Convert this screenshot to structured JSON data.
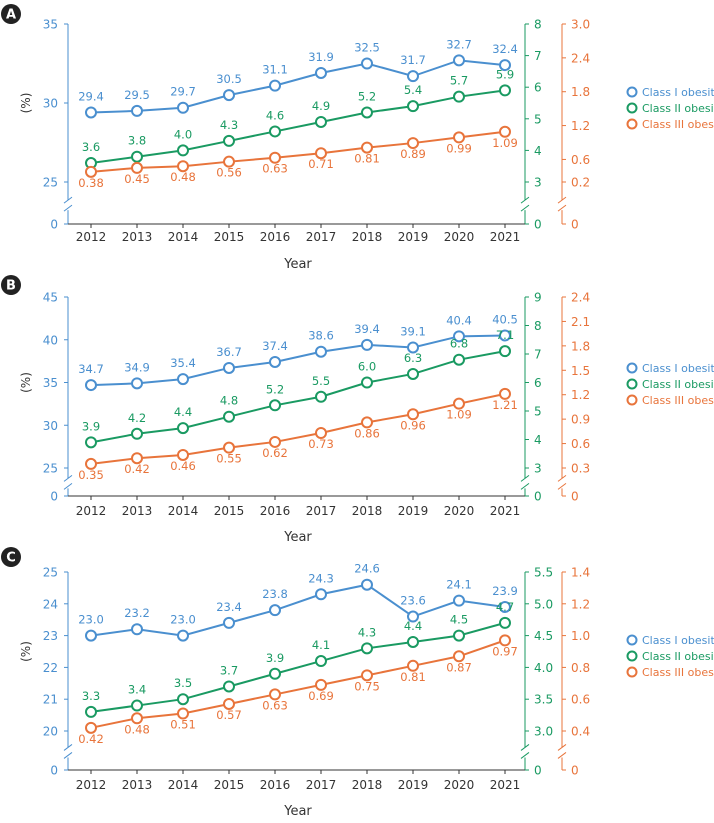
{
  "colors": {
    "class1": "#4a8fcf",
    "class2": "#1a9a62",
    "class3": "#e8743b",
    "axis": "#333333",
    "badge": "#222222"
  },
  "chart_data": [
    {
      "type": "line",
      "panel_label": "A",
      "title": "",
      "xlabel": "Year",
      "ylabel": "(%)",
      "categories": [
        "2012",
        "2013",
        "2014",
        "2015",
        "2016",
        "2017",
        "2018",
        "2019",
        "2020",
        "2021"
      ],
      "y_left": {
        "min": 25,
        "max": 35,
        "ticks": [
          "25",
          "30",
          "35"
        ],
        "zero": "0"
      },
      "y_mid": {
        "min": 3,
        "max": 8,
        "ticks": [
          "3",
          "4",
          "5",
          "6",
          "7",
          "8"
        ],
        "zero": "0"
      },
      "y_right": {
        "min": 0.2,
        "max": 3.0,
        "ticks": [
          "0.2",
          "0.6",
          "1.2",
          "1.8",
          "2.4",
          "3.0"
        ],
        "zero": "0"
      },
      "series": [
        {
          "name": "Class I obesity",
          "axis": "left",
          "values": [
            29.4,
            29.5,
            29.7,
            30.5,
            31.1,
            31.9,
            32.5,
            31.7,
            32.7,
            32.4
          ],
          "labels": [
            "29.4",
            "29.5",
            "29.7",
            "30.5",
            "31.1",
            "31.9",
            "32.5",
            "31.7",
            "32.7",
            "32.4"
          ]
        },
        {
          "name": "Class II obesity",
          "axis": "mid",
          "values": [
            3.6,
            3.8,
            4.0,
            4.3,
            4.6,
            4.9,
            5.2,
            5.4,
            5.7,
            5.9
          ],
          "labels": [
            "3.6",
            "3.8",
            "4.0",
            "4.3",
            "4.6",
            "4.9",
            "5.2",
            "5.4",
            "5.7",
            "5.9"
          ]
        },
        {
          "name": "Class III obesity",
          "axis": "right",
          "values": [
            0.38,
            0.45,
            0.48,
            0.56,
            0.63,
            0.71,
            0.81,
            0.89,
            0.99,
            1.09
          ],
          "labels": [
            "0.38",
            "0.45",
            "0.48",
            "0.56",
            "0.63",
            "0.71",
            "0.81",
            "0.89",
            "0.99",
            "1.09"
          ]
        }
      ]
    },
    {
      "type": "line",
      "panel_label": "B",
      "title": "",
      "xlabel": "Year",
      "ylabel": "(%)",
      "categories": [
        "2012",
        "2013",
        "2014",
        "2015",
        "2016",
        "2017",
        "2018",
        "2019",
        "2020",
        "2021"
      ],
      "y_left": {
        "min": 25,
        "max": 45,
        "ticks": [
          "25",
          "30",
          "35",
          "40",
          "45"
        ],
        "zero": "0"
      },
      "y_mid": {
        "min": 3,
        "max": 9,
        "ticks": [
          "3",
          "4",
          "5",
          "6",
          "7",
          "8",
          "9"
        ],
        "zero": "0"
      },
      "y_right": {
        "min": 0.3,
        "max": 2.4,
        "ticks": [
          "0.3",
          "0.6",
          "0.9",
          "1.2",
          "1.5",
          "1.8",
          "2.1",
          "2.4"
        ],
        "zero": "0"
      },
      "series": [
        {
          "name": "Class I obesity",
          "axis": "left",
          "values": [
            34.7,
            34.9,
            35.4,
            36.7,
            37.4,
            38.6,
            39.4,
            39.1,
            40.4,
            40.5
          ],
          "labels": [
            "34.7",
            "34.9",
            "35.4",
            "36.7",
            "37.4",
            "38.6",
            "39.4",
            "39.1",
            "40.4",
            "40.5"
          ]
        },
        {
          "name": "Class II obesity",
          "axis": "mid",
          "values": [
            3.9,
            4.2,
            4.4,
            4.8,
            5.2,
            5.5,
            6.0,
            6.3,
            6.8,
            7.1
          ],
          "labels": [
            "3.9",
            "4.2",
            "4.4",
            "4.8",
            "5.2",
            "5.5",
            "6.0",
            "6.3",
            "6.8",
            "7.1"
          ]
        },
        {
          "name": "Class III obesity",
          "axis": "right",
          "values": [
            0.35,
            0.42,
            0.46,
            0.55,
            0.62,
            0.73,
            0.86,
            0.96,
            1.09,
            1.21
          ],
          "labels": [
            "0.35",
            "0.42",
            "0.46",
            "0.55",
            "0.62",
            "0.73",
            "0.86",
            "0.96",
            "1.09",
            "1.21"
          ]
        }
      ]
    },
    {
      "type": "line",
      "panel_label": "C",
      "title": "",
      "xlabel": "Year",
      "ylabel": "(%)",
      "categories": [
        "2012",
        "2013",
        "2014",
        "2015",
        "2016",
        "2017",
        "2018",
        "2019",
        "2020",
        "2021"
      ],
      "y_left": {
        "min": 20,
        "max": 25,
        "ticks": [
          "20",
          "21",
          "22",
          "23",
          "24",
          "25"
        ],
        "zero": "0"
      },
      "y_mid": {
        "min": 3.0,
        "max": 5.5,
        "ticks": [
          "3.0",
          "3.5",
          "4.0",
          "4.5",
          "5.0",
          "5.5"
        ],
        "zero": "0"
      },
      "y_right": {
        "min": 0.4,
        "max": 1.4,
        "ticks": [
          "0.4",
          "0.6",
          "0.8",
          "1.0",
          "1.2",
          "1.4"
        ],
        "zero": "0"
      },
      "series": [
        {
          "name": "Class I obesity",
          "axis": "left",
          "values": [
            23.0,
            23.2,
            23.0,
            23.4,
            23.8,
            24.3,
            24.6,
            23.6,
            24.1,
            23.9
          ],
          "labels": [
            "23.0",
            "23.2",
            "23.0",
            "23.4",
            "23.8",
            "24.3",
            "24.6",
            "23.6",
            "24.1",
            "23.9"
          ]
        },
        {
          "name": "Class II obesity",
          "axis": "mid",
          "values": [
            3.3,
            3.4,
            3.5,
            3.7,
            3.9,
            4.1,
            4.3,
            4.4,
            4.5,
            4.7
          ],
          "labels": [
            "3.3",
            "3.4",
            "3.5",
            "3.7",
            "3.9",
            "4.1",
            "4.3",
            "4.4",
            "4.5",
            "4.7"
          ]
        },
        {
          "name": "Class III obesity",
          "axis": "right",
          "values": [
            0.42,
            0.48,
            0.51,
            0.57,
            0.63,
            0.69,
            0.75,
            0.81,
            0.87,
            0.97
          ],
          "labels": [
            "0.42",
            "0.48",
            "0.51",
            "0.57",
            "0.63",
            "0.69",
            "0.75",
            "0.81",
            "0.87",
            "0.97"
          ]
        }
      ]
    }
  ]
}
